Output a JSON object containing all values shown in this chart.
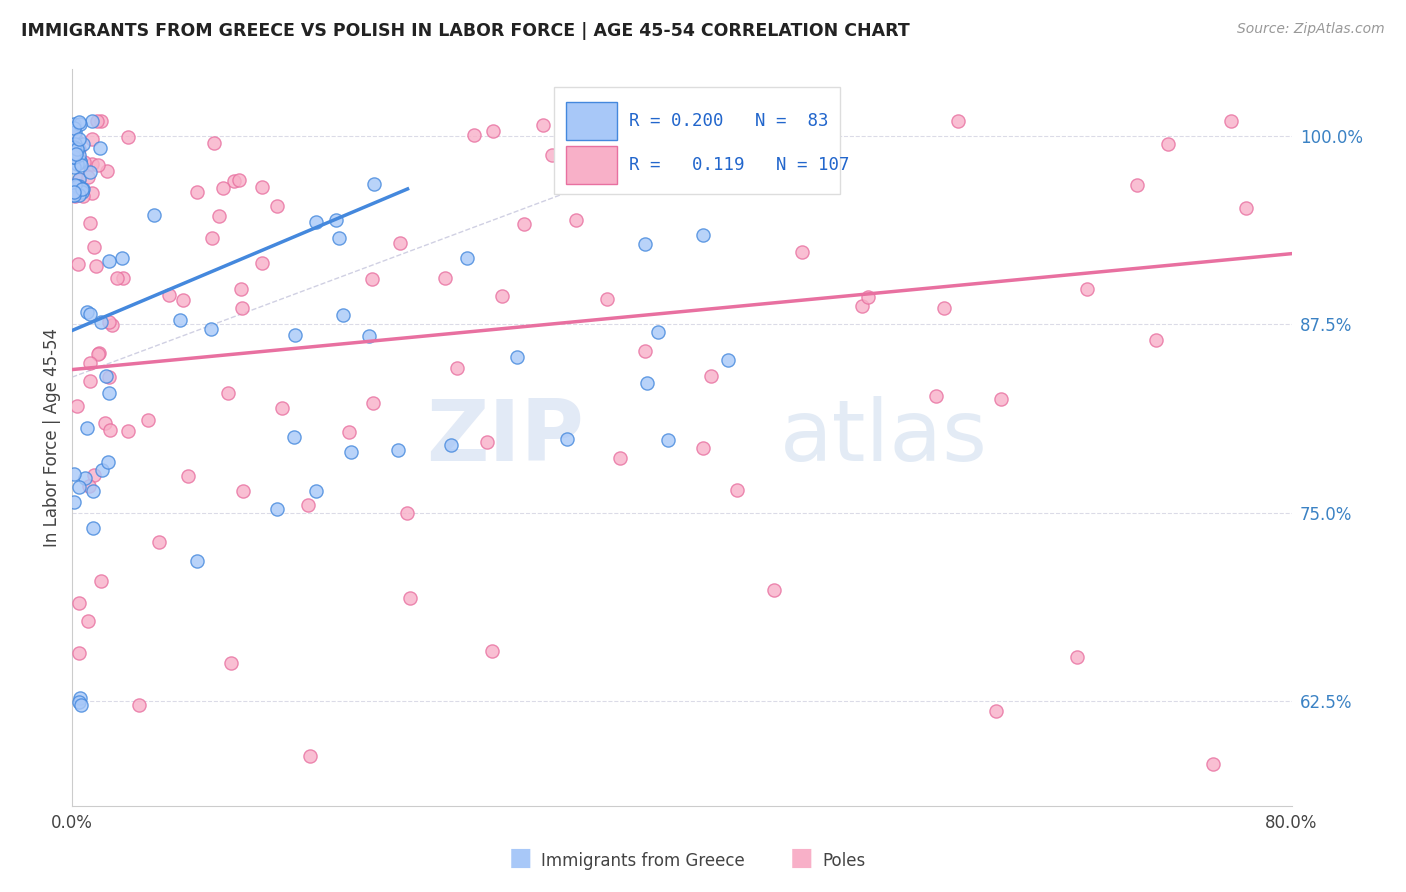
{
  "title": "IMMIGRANTS FROM GREECE VS POLISH IN LABOR FORCE | AGE 45-54 CORRELATION CHART",
  "source": "Source: ZipAtlas.com",
  "ylabel": "In Labor Force | Age 45-54",
  "xlim": [
    0.0,
    0.8
  ],
  "ylim": [
    0.555,
    1.045
  ],
  "x_ticks": [
    0.0,
    0.1,
    0.2,
    0.3,
    0.4,
    0.5,
    0.6,
    0.7,
    0.8
  ],
  "x_tick_labels": [
    "0.0%",
    "",
    "",
    "",
    "",
    "",
    "",
    "",
    "80.0%"
  ],
  "y_tick_vals_right": [
    0.625,
    0.75,
    0.875,
    1.0
  ],
  "y_tick_labels_right": [
    "62.5%",
    "75.0%",
    "87.5%",
    "100.0%"
  ],
  "greece_R": 0.2,
  "greece_N": 83,
  "poles_R": 0.119,
  "poles_N": 107,
  "greece_color": "#A8C8F8",
  "poles_color": "#F8B0C8",
  "greece_edge_color": "#4488DD",
  "poles_edge_color": "#E870A0",
  "watermark_zip": "ZIP",
  "watermark_atlas": "atlas",
  "legend_label_greece": "Immigrants from Greece",
  "legend_label_poles": "Poles"
}
